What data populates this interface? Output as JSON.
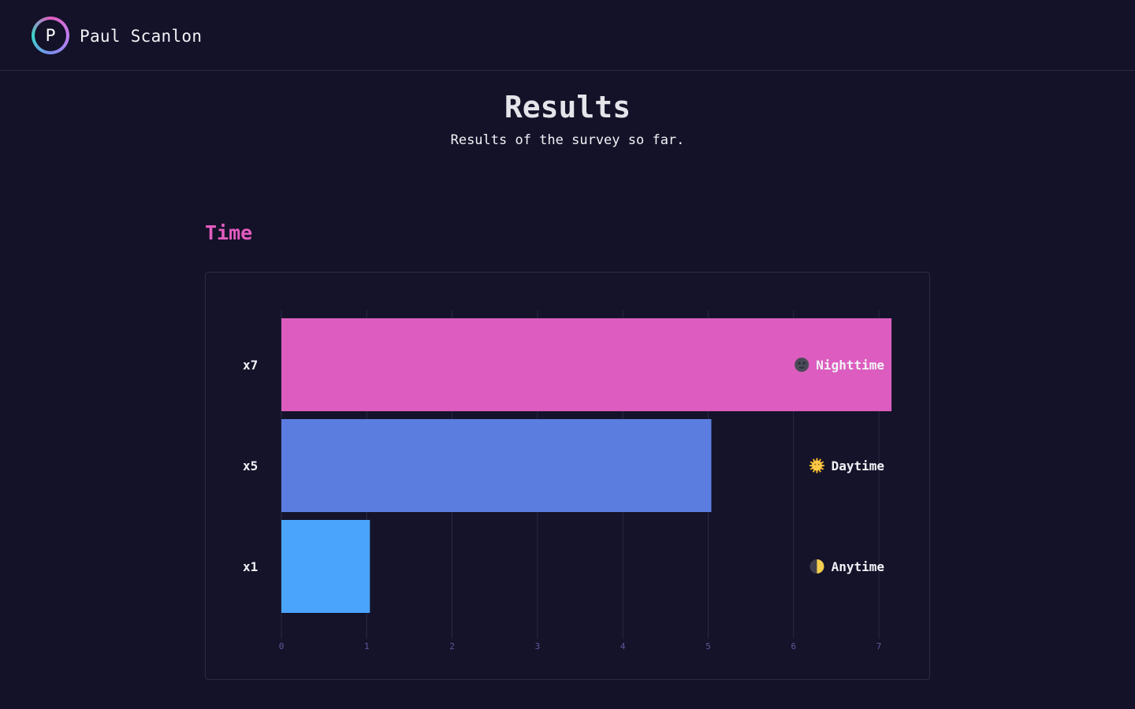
{
  "header": {
    "logo_letter": "P",
    "site_name": "Paul Scanlon"
  },
  "page": {
    "title": "Results",
    "subtitle": "Results of the survey so far."
  },
  "section": {
    "title": "Time"
  },
  "colors": {
    "accent": "#e05dbf",
    "nighttime": "#dc5dbf",
    "daytime": "#5b7de0",
    "anytime": "#4aa4fb"
  },
  "chart_data": {
    "type": "bar",
    "orientation": "horizontal",
    "categories": [
      "Nighttime",
      "Daytime",
      "Anytime"
    ],
    "category_icons": [
      "new-moon-icon",
      "sun-icon",
      "half-moon-icon"
    ],
    "value_labels": [
      "x7",
      "x5",
      "x1"
    ],
    "values": [
      7,
      5,
      1
    ],
    "xlim": [
      0,
      7
    ],
    "xticks": [
      0,
      1,
      2,
      3,
      4,
      5,
      6,
      7
    ],
    "grid": true,
    "legend": "none"
  }
}
